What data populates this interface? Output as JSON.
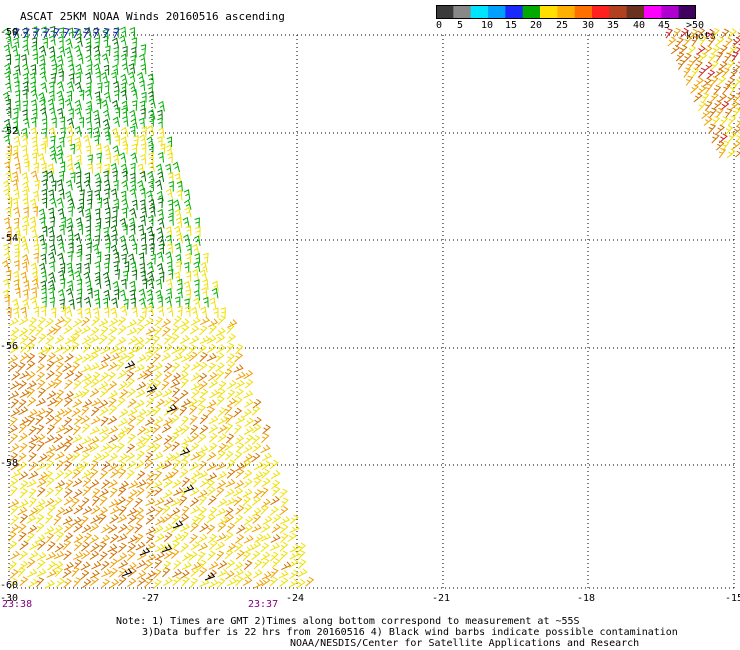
{
  "title": "ASCAT 25KM NOAA Winds 20160516 ascending",
  "legend": {
    "ticks": [
      "0",
      "5",
      "10",
      "15",
      "20",
      "25",
      "30",
      "35",
      "40",
      "45",
      ">50 knots"
    ],
    "colors": [
      "#3a3a3a",
      "#888888",
      "#00e5ff",
      "#00a0ff",
      "#1a2aff",
      "#00aa00",
      "#ffe000",
      "#ffb000",
      "#ff7000",
      "#ff2020",
      "#b04020",
      "#6a3020",
      "#ff00ff",
      "#b000d0",
      "#400060"
    ]
  },
  "axes": {
    "lon_labels": [
      "-30",
      "-27",
      "-24",
      "-21",
      "-18",
      "-15"
    ],
    "lat_labels": [
      "-50",
      "-52",
      "-54",
      "-56",
      "-58",
      "-60"
    ]
  },
  "swath_times": [
    "23:38",
    "23:37"
  ],
  "notes": [
    "Note: 1) Times are GMT 2)Times along bottom correspond to measurement at ~55S",
    "3)Data buffer is 22 hrs from 20160516 4) Black wind barbs indicate possible contamination",
    "NOAA/NESDIS/Center for Satellite Applications and Research"
  ],
  "wind_colors": {
    "green_dark": "#007000",
    "green": "#00b000",
    "yellow": "#f0e000",
    "orange": "#f0a000",
    "dark_orange": "#d07000",
    "red": "#d02020",
    "black": "#000000",
    "blue": "#2020c0"
  }
}
